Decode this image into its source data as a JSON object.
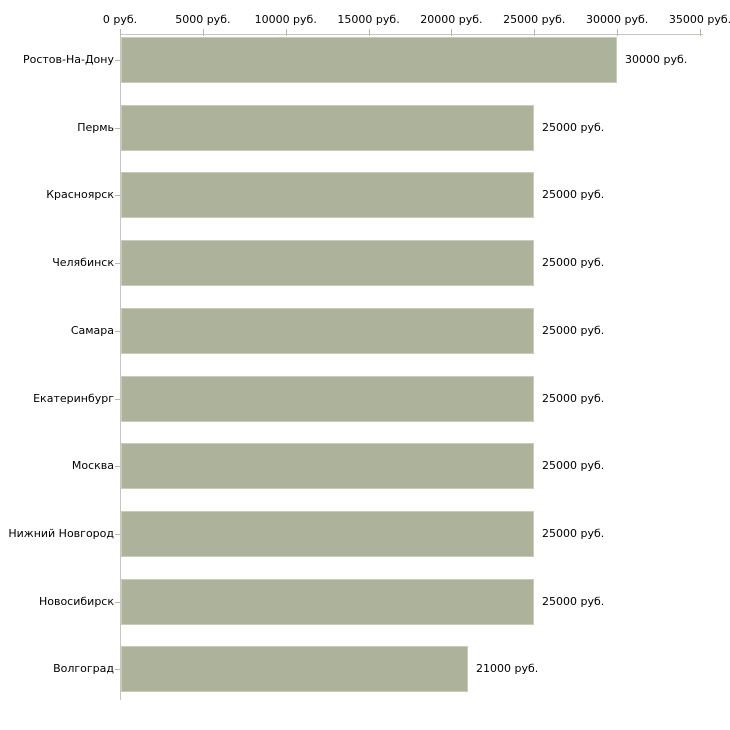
{
  "chart_data": {
    "type": "bar",
    "orientation": "horizontal",
    "title": "",
    "xlabel": "",
    "ylabel": "",
    "grid": false,
    "legend": false,
    "xlim": [
      0,
      35000
    ],
    "categories": [
      "Ростов-На-Дону",
      "Пермь",
      "Красноярск",
      "Челябинск",
      "Самара",
      "Екатеринбург",
      "Москва",
      "Нижний Новгород",
      "Новосибирск",
      "Волгоград"
    ],
    "values": [
      30000,
      25000,
      25000,
      25000,
      25000,
      25000,
      25000,
      25000,
      25000,
      21000
    ],
    "value_labels": [
      "30000 руб.",
      "25000 руб.",
      "25000 руб.",
      "25000 руб.",
      "25000 руб.",
      "25000 руб.",
      "25000 руб.",
      "25000 руб.",
      "25000 руб.",
      "21000 руб."
    ],
    "x_axis": {
      "ticks": [
        0,
        5000,
        10000,
        15000,
        20000,
        25000,
        30000,
        35000
      ],
      "tick_labels": [
        "0 руб.",
        "5000 руб.",
        "10000 руб.",
        "15000 руб.",
        "20000 руб.",
        "25000 руб.",
        "30000 руб.",
        "35000 руб."
      ]
    },
    "colors": {
      "bar_fill": "#adb29a",
      "bar_border": "#c8ccb8",
      "axis_line": "#c6c6c0",
      "tick": "#b8bb9d",
      "text": "#000000"
    }
  }
}
